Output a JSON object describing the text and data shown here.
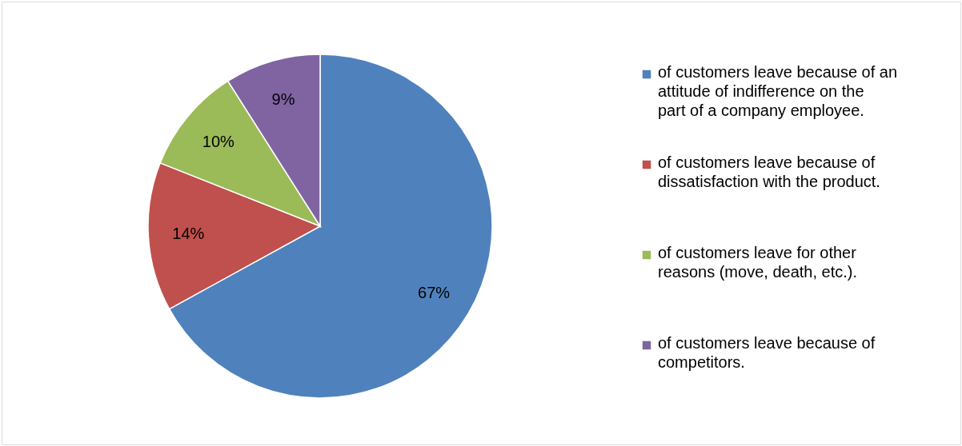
{
  "chart_data": {
    "type": "pie",
    "categories": [
      "of customers leave because of an attitude of indifference on the part of a company employee.",
      "of customers leave because of dissatisfaction with the product.",
      "of customers leave for other reasons (move, death, etc.).",
      "of customers leave because of competitors."
    ],
    "values": [
      67,
      14,
      10,
      9
    ],
    "colors": [
      "#4f81bd",
      "#c0504d",
      "#9bbb59",
      "#8064a2"
    ],
    "value_labels": [
      "67%",
      "14%",
      "10%",
      "9%"
    ],
    "legend": "right"
  }
}
